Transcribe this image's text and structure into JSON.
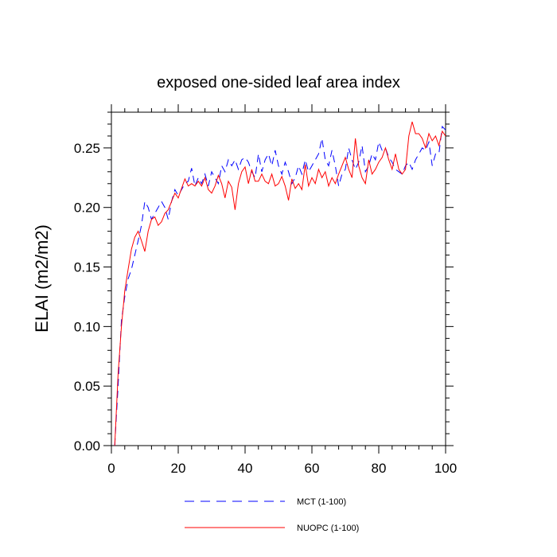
{
  "chart_data": {
    "type": "line",
    "title": "exposed one-sided leaf area index",
    "xlabel": "",
    "ylabel": "ELAI  (m2/m2)",
    "xlim": [
      0,
      100
    ],
    "ylim": [
      0,
      0.28
    ],
    "xticks": [
      0,
      20,
      40,
      60,
      80,
      100
    ],
    "xtick_labels": [
      "0",
      "20",
      "40",
      "60",
      "80",
      "100"
    ],
    "yticks": [
      0,
      0.05,
      0.1,
      0.15,
      0.2,
      0.25
    ],
    "ytick_labels": [
      "0.00",
      "0.05",
      "0.10",
      "0.15",
      "0.20",
      "0.25"
    ],
    "grid": false,
    "legend_position": "bottom-center",
    "series": [
      {
        "name": "MCT (1-100)",
        "color": "#0000ff",
        "dash": "dashed",
        "x": [
          1,
          2,
          3,
          4,
          5,
          6,
          7,
          8,
          9,
          10,
          11,
          12,
          13,
          14,
          15,
          16,
          17,
          18,
          19,
          20,
          21,
          22,
          23,
          24,
          25,
          26,
          27,
          28,
          29,
          30,
          31,
          32,
          33,
          34,
          35,
          36,
          37,
          38,
          39,
          40,
          41,
          42,
          43,
          44,
          45,
          46,
          47,
          48,
          49,
          50,
          51,
          52,
          53,
          54,
          55,
          56,
          57,
          58,
          59,
          60,
          61,
          62,
          63,
          64,
          65,
          66,
          67,
          68,
          69,
          70,
          71,
          72,
          73,
          74,
          75,
          76,
          77,
          78,
          79,
          80,
          81,
          82,
          83,
          84,
          85,
          86,
          87,
          88,
          89,
          90,
          91,
          92,
          93,
          94,
          95,
          96,
          97,
          98,
          99,
          100
        ],
        "values": [
          0.0,
          0.05,
          0.105,
          0.125,
          0.14,
          0.148,
          0.16,
          0.172,
          0.185,
          0.205,
          0.2,
          0.19,
          0.195,
          0.2,
          0.205,
          0.2,
          0.19,
          0.205,
          0.215,
          0.21,
          0.215,
          0.22,
          0.222,
          0.233,
          0.218,
          0.225,
          0.22,
          0.228,
          0.218,
          0.23,
          0.225,
          0.22,
          0.235,
          0.23,
          0.24,
          0.235,
          0.24,
          0.232,
          0.24,
          0.242,
          0.238,
          0.23,
          0.225,
          0.245,
          0.23,
          0.24,
          0.245,
          0.235,
          0.248,
          0.235,
          0.228,
          0.238,
          0.23,
          0.22,
          0.225,
          0.235,
          0.228,
          0.24,
          0.23,
          0.235,
          0.24,
          0.245,
          0.258,
          0.24,
          0.235,
          0.248,
          0.235,
          0.218,
          0.228,
          0.232,
          0.25,
          0.24,
          0.232,
          0.238,
          0.252,
          0.23,
          0.235,
          0.245,
          0.24,
          0.255,
          0.248,
          0.25,
          0.242,
          0.238,
          0.232,
          0.23,
          0.228,
          0.235,
          0.238,
          0.232,
          0.24,
          0.245,
          0.25,
          0.248,
          0.255,
          0.235,
          0.245,
          0.245,
          0.268,
          0.265
        ]
      },
      {
        "name": "NUOPC (1-100)",
        "color": "#ff0000",
        "dash": "solid",
        "x": [
          1,
          2,
          3,
          4,
          5,
          6,
          7,
          8,
          9,
          10,
          11,
          12,
          13,
          14,
          15,
          16,
          17,
          18,
          19,
          20,
          21,
          22,
          23,
          24,
          25,
          26,
          27,
          28,
          29,
          30,
          31,
          32,
          33,
          34,
          35,
          36,
          37,
          38,
          39,
          40,
          41,
          42,
          43,
          44,
          45,
          46,
          47,
          48,
          49,
          50,
          51,
          52,
          53,
          54,
          55,
          56,
          57,
          58,
          59,
          60,
          61,
          62,
          63,
          64,
          65,
          66,
          67,
          68,
          69,
          70,
          71,
          72,
          73,
          74,
          75,
          76,
          77,
          78,
          79,
          80,
          81,
          82,
          83,
          84,
          85,
          86,
          87,
          88,
          89,
          90,
          91,
          92,
          93,
          94,
          95,
          96,
          97,
          98,
          99,
          100
        ],
        "values": [
          0.0,
          0.06,
          0.1,
          0.13,
          0.148,
          0.165,
          0.175,
          0.18,
          0.172,
          0.163,
          0.18,
          0.19,
          0.192,
          0.185,
          0.188,
          0.195,
          0.198,
          0.205,
          0.212,
          0.208,
          0.216,
          0.224,
          0.218,
          0.22,
          0.218,
          0.222,
          0.218,
          0.225,
          0.215,
          0.212,
          0.218,
          0.227,
          0.22,
          0.208,
          0.222,
          0.217,
          0.198,
          0.22,
          0.23,
          0.234,
          0.22,
          0.232,
          0.222,
          0.222,
          0.228,
          0.222,
          0.22,
          0.228,
          0.218,
          0.22,
          0.226,
          0.218,
          0.206,
          0.224,
          0.216,
          0.22,
          0.215,
          0.236,
          0.218,
          0.225,
          0.22,
          0.232,
          0.225,
          0.23,
          0.218,
          0.225,
          0.22,
          0.228,
          0.235,
          0.242,
          0.232,
          0.225,
          0.258,
          0.235,
          0.225,
          0.22,
          0.24,
          0.228,
          0.232,
          0.238,
          0.242,
          0.25,
          0.24,
          0.232,
          0.245,
          0.232,
          0.228,
          0.232,
          0.26,
          0.272,
          0.262,
          0.262,
          0.258,
          0.25,
          0.262,
          0.256,
          0.26,
          0.252,
          0.264,
          0.26
        ]
      }
    ]
  }
}
